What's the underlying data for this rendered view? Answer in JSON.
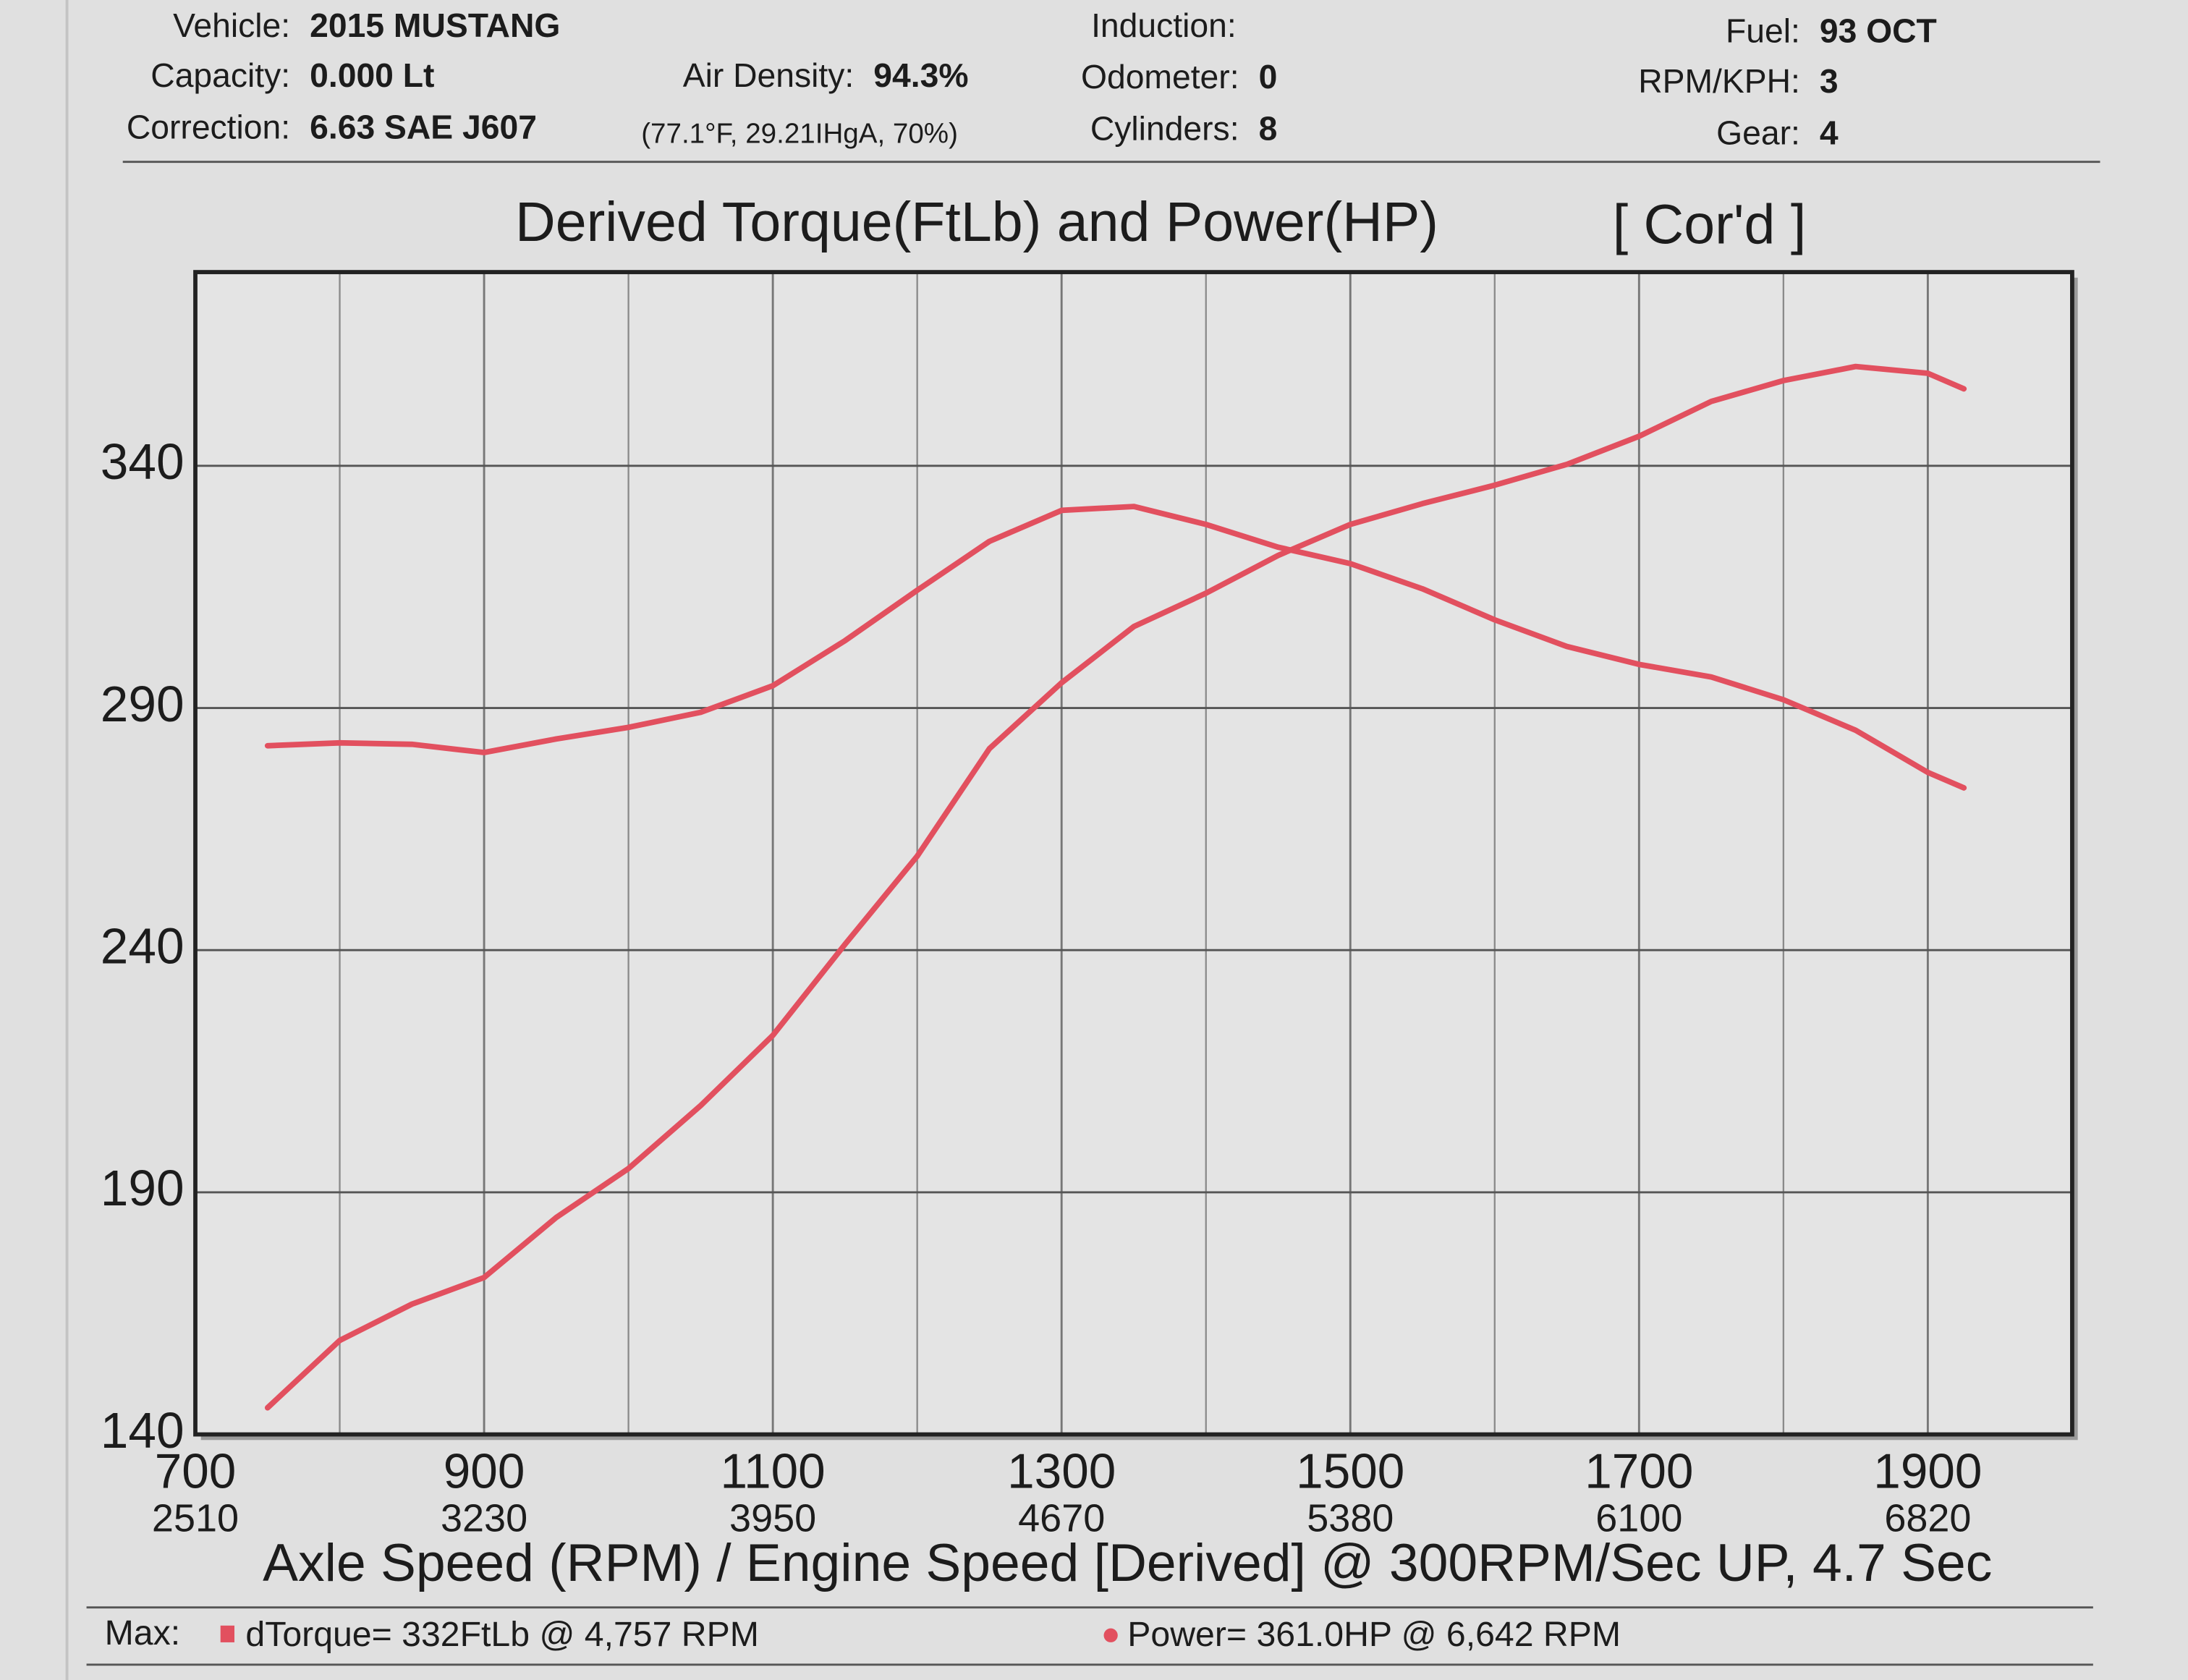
{
  "chart_data": {
    "type": "line",
    "header": [
      {
        "label": "Vehicle:",
        "value": "2015 MUSTANG"
      },
      {
        "label": "Capacity:",
        "value": "0.000 Lt"
      },
      {
        "label": "Correction:",
        "value": "6.63 SAE J607"
      },
      {
        "label": "Air Density:",
        "value": "94.3%"
      },
      {
        "label": "Induction:"
      },
      {
        "label": "Odometer:",
        "value": "0"
      },
      {
        "label": "Cylinders:",
        "value": "8"
      },
      {
        "label": "Fuel:",
        "value": "93 OCT"
      },
      {
        "label": "RPM/KPH:",
        "value": "3"
      },
      {
        "label": "Gear:",
        "value": "4"
      }
    ],
    "air_conditions": "(77.1°F, 29.21IHgA, 70%)",
    "title": "Derived Torque(FtLb) and Power(HP)",
    "title_note": "[ Cor'd ]",
    "x_label": "Axle Speed (RPM) / Engine Speed [Derived] @ 300RPM/Sec UP, 4.7 Sec",
    "x": [
      750,
      800,
      850,
      900,
      950,
      1000,
      1050,
      1100,
      1150,
      1200,
      1250,
      1300,
      1350,
      1400,
      1450,
      1500,
      1550,
      1600,
      1650,
      1700,
      1750,
      1800,
      1850,
      1900,
      1925
    ],
    "series": [
      {
        "name": "dTorque",
        "color": "#e2505f",
        "marker": "square",
        "values": [
          282.2,
          282.8,
          282.5,
          280.8,
          283.6,
          286,
          289.1,
          294.6,
          303.9,
          314.3,
          324.4,
          330.8,
          331.6,
          327.9,
          323.2,
          319.8,
          314.6,
          308.2,
          302.7,
          299,
          296.4,
          291.7,
          285.4,
          276.7,
          273.5
        ],
        "summary": "= 332FtLb @ 4,757 RPM"
      },
      {
        "name": "Power",
        "color": "#e2505f",
        "marker": "circle",
        "values": [
          145.5,
          159.4,
          166.9,
          172.4,
          184.8,
          194.9,
          207.9,
          222.4,
          241.2,
          259.4,
          281.6,
          295.2,
          306.8,
          313.7,
          321.5,
          327.9,
          332.2,
          336,
          340.3,
          346.1,
          353.3,
          357.6,
          360.5,
          359.1,
          355.9
        ],
        "summary": "= 361.0HP @ 6,642 RPM"
      }
    ],
    "legend_label": "Max:",
    "xlim": [
      700,
      2000
    ],
    "xticks": [
      700,
      900,
      1100,
      1300,
      1500,
      1700,
      1900
    ],
    "xticks_secondary": [
      2510,
      3230,
      3950,
      4670,
      5380,
      6100,
      6820
    ],
    "minor_xticks": [
      800,
      1000,
      1200,
      1400,
      1600,
      1800
    ],
    "ylim": [
      140,
      380
    ],
    "yticks": [
      140,
      190,
      240,
      290,
      340
    ],
    "grid": true
  }
}
